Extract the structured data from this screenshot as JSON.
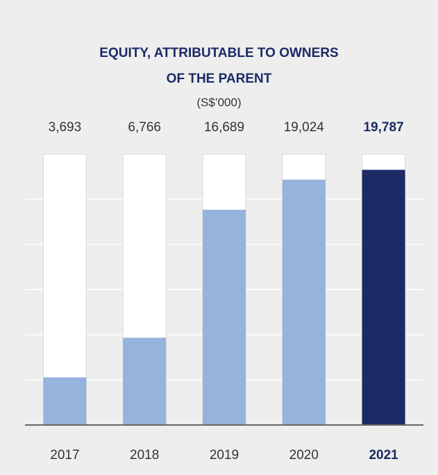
{
  "chart_data": {
    "type": "bar",
    "title": "EQUITY, ATTRIBUTABLE TO OWNERS OF THE PARENT",
    "subtitle": "(S$’000)",
    "categories": [
      "2017",
      "2018",
      "2019",
      "2020",
      "2021"
    ],
    "values": [
      3693,
      6766,
      16689,
      19024,
      19787
    ],
    "value_labels": [
      "3,693",
      "6,766",
      "16,689",
      "19,024",
      "19,787"
    ],
    "colors": [
      "#95b3dc",
      "#95b3dc",
      "#95b3dc",
      "#95b3dc",
      "#1c2a66"
    ],
    "ylim": [
      0,
      21000
    ]
  }
}
